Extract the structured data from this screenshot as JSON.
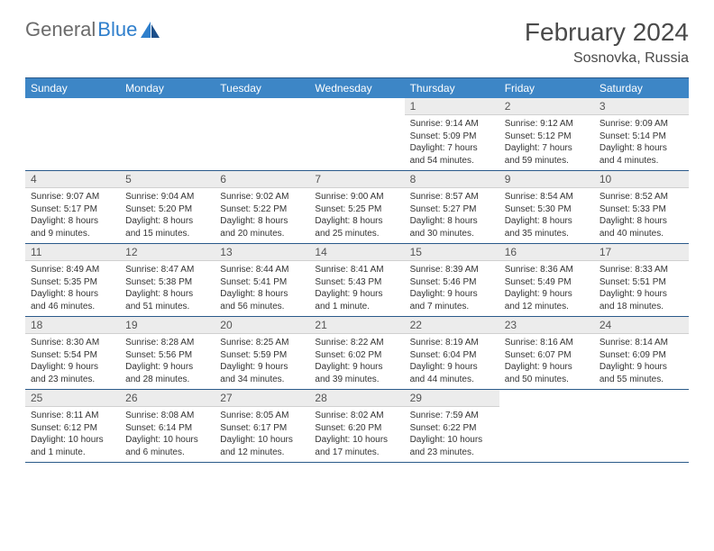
{
  "brand": {
    "part1": "General",
    "part2": "Blue"
  },
  "title": "February 2024",
  "location": "Sosnovka, Russia",
  "colors": {
    "header_bg": "#3d86c6",
    "header_text": "#ffffff",
    "daynum_bg": "#ececec",
    "border": "#2a5a8a",
    "body_text": "#333333",
    "title_text": "#4a4a4a",
    "logo_gray": "#6b6b6b",
    "logo_blue": "#2f7fcc"
  },
  "weekdays": [
    "Sunday",
    "Monday",
    "Tuesday",
    "Wednesday",
    "Thursday",
    "Friday",
    "Saturday"
  ],
  "weeks": [
    [
      null,
      null,
      null,
      null,
      {
        "n": "1",
        "sr": "Sunrise: 9:14 AM",
        "ss": "Sunset: 5:09 PM",
        "dl": "Daylight: 7 hours and 54 minutes."
      },
      {
        "n": "2",
        "sr": "Sunrise: 9:12 AM",
        "ss": "Sunset: 5:12 PM",
        "dl": "Daylight: 7 hours and 59 minutes."
      },
      {
        "n": "3",
        "sr": "Sunrise: 9:09 AM",
        "ss": "Sunset: 5:14 PM",
        "dl": "Daylight: 8 hours and 4 minutes."
      }
    ],
    [
      {
        "n": "4",
        "sr": "Sunrise: 9:07 AM",
        "ss": "Sunset: 5:17 PM",
        "dl": "Daylight: 8 hours and 9 minutes."
      },
      {
        "n": "5",
        "sr": "Sunrise: 9:04 AM",
        "ss": "Sunset: 5:20 PM",
        "dl": "Daylight: 8 hours and 15 minutes."
      },
      {
        "n": "6",
        "sr": "Sunrise: 9:02 AM",
        "ss": "Sunset: 5:22 PM",
        "dl": "Daylight: 8 hours and 20 minutes."
      },
      {
        "n": "7",
        "sr": "Sunrise: 9:00 AM",
        "ss": "Sunset: 5:25 PM",
        "dl": "Daylight: 8 hours and 25 minutes."
      },
      {
        "n": "8",
        "sr": "Sunrise: 8:57 AM",
        "ss": "Sunset: 5:27 PM",
        "dl": "Daylight: 8 hours and 30 minutes."
      },
      {
        "n": "9",
        "sr": "Sunrise: 8:54 AM",
        "ss": "Sunset: 5:30 PM",
        "dl": "Daylight: 8 hours and 35 minutes."
      },
      {
        "n": "10",
        "sr": "Sunrise: 8:52 AM",
        "ss": "Sunset: 5:33 PM",
        "dl": "Daylight: 8 hours and 40 minutes."
      }
    ],
    [
      {
        "n": "11",
        "sr": "Sunrise: 8:49 AM",
        "ss": "Sunset: 5:35 PM",
        "dl": "Daylight: 8 hours and 46 minutes."
      },
      {
        "n": "12",
        "sr": "Sunrise: 8:47 AM",
        "ss": "Sunset: 5:38 PM",
        "dl": "Daylight: 8 hours and 51 minutes."
      },
      {
        "n": "13",
        "sr": "Sunrise: 8:44 AM",
        "ss": "Sunset: 5:41 PM",
        "dl": "Daylight: 8 hours and 56 minutes."
      },
      {
        "n": "14",
        "sr": "Sunrise: 8:41 AM",
        "ss": "Sunset: 5:43 PM",
        "dl": "Daylight: 9 hours and 1 minute."
      },
      {
        "n": "15",
        "sr": "Sunrise: 8:39 AM",
        "ss": "Sunset: 5:46 PM",
        "dl": "Daylight: 9 hours and 7 minutes."
      },
      {
        "n": "16",
        "sr": "Sunrise: 8:36 AM",
        "ss": "Sunset: 5:49 PM",
        "dl": "Daylight: 9 hours and 12 minutes."
      },
      {
        "n": "17",
        "sr": "Sunrise: 8:33 AM",
        "ss": "Sunset: 5:51 PM",
        "dl": "Daylight: 9 hours and 18 minutes."
      }
    ],
    [
      {
        "n": "18",
        "sr": "Sunrise: 8:30 AM",
        "ss": "Sunset: 5:54 PM",
        "dl": "Daylight: 9 hours and 23 minutes."
      },
      {
        "n": "19",
        "sr": "Sunrise: 8:28 AM",
        "ss": "Sunset: 5:56 PM",
        "dl": "Daylight: 9 hours and 28 minutes."
      },
      {
        "n": "20",
        "sr": "Sunrise: 8:25 AM",
        "ss": "Sunset: 5:59 PM",
        "dl": "Daylight: 9 hours and 34 minutes."
      },
      {
        "n": "21",
        "sr": "Sunrise: 8:22 AM",
        "ss": "Sunset: 6:02 PM",
        "dl": "Daylight: 9 hours and 39 minutes."
      },
      {
        "n": "22",
        "sr": "Sunrise: 8:19 AM",
        "ss": "Sunset: 6:04 PM",
        "dl": "Daylight: 9 hours and 44 minutes."
      },
      {
        "n": "23",
        "sr": "Sunrise: 8:16 AM",
        "ss": "Sunset: 6:07 PM",
        "dl": "Daylight: 9 hours and 50 minutes."
      },
      {
        "n": "24",
        "sr": "Sunrise: 8:14 AM",
        "ss": "Sunset: 6:09 PM",
        "dl": "Daylight: 9 hours and 55 minutes."
      }
    ],
    [
      {
        "n": "25",
        "sr": "Sunrise: 8:11 AM",
        "ss": "Sunset: 6:12 PM",
        "dl": "Daylight: 10 hours and 1 minute."
      },
      {
        "n": "26",
        "sr": "Sunrise: 8:08 AM",
        "ss": "Sunset: 6:14 PM",
        "dl": "Daylight: 10 hours and 6 minutes."
      },
      {
        "n": "27",
        "sr": "Sunrise: 8:05 AM",
        "ss": "Sunset: 6:17 PM",
        "dl": "Daylight: 10 hours and 12 minutes."
      },
      {
        "n": "28",
        "sr": "Sunrise: 8:02 AM",
        "ss": "Sunset: 6:20 PM",
        "dl": "Daylight: 10 hours and 17 minutes."
      },
      {
        "n": "29",
        "sr": "Sunrise: 7:59 AM",
        "ss": "Sunset: 6:22 PM",
        "dl": "Daylight: 10 hours and 23 minutes."
      },
      null,
      null
    ]
  ]
}
